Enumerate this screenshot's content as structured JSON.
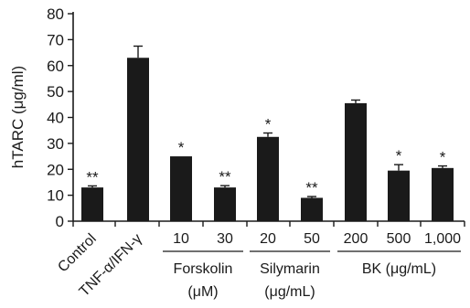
{
  "chart_data": {
    "type": "bar",
    "ylabel": "hTARC (μg/ml)",
    "ylim": [
      0,
      80
    ],
    "yticks": [
      0,
      10,
      20,
      30,
      40,
      50,
      60,
      70,
      80
    ],
    "bar_color": "#1a1a1a",
    "categories": [
      "Control",
      "TNF-α/IFN-γ",
      "10",
      "30",
      "20",
      "50",
      "200",
      "500",
      "1,000"
    ],
    "values": [
      13,
      63,
      25,
      13,
      32.5,
      9,
      45.5,
      19.5,
      20.5
    ],
    "errors": [
      0.6,
      4.5,
      0,
      0.7,
      1.5,
      0.5,
      1.2,
      2.3,
      0.8
    ],
    "significance": [
      "**",
      "",
      "*",
      "**",
      "*",
      "**",
      "",
      "*",
      "*"
    ],
    "groups": [
      {
        "label": "Forskolin",
        "unit": "(μM)",
        "members": [
          2,
          3
        ]
      },
      {
        "label": "Silymarin",
        "unit": "(μg/mL)",
        "members": [
          4,
          5
        ]
      },
      {
        "label": "BK (μg/mL)",
        "unit": "",
        "members": [
          6,
          7,
          8
        ]
      }
    ]
  }
}
